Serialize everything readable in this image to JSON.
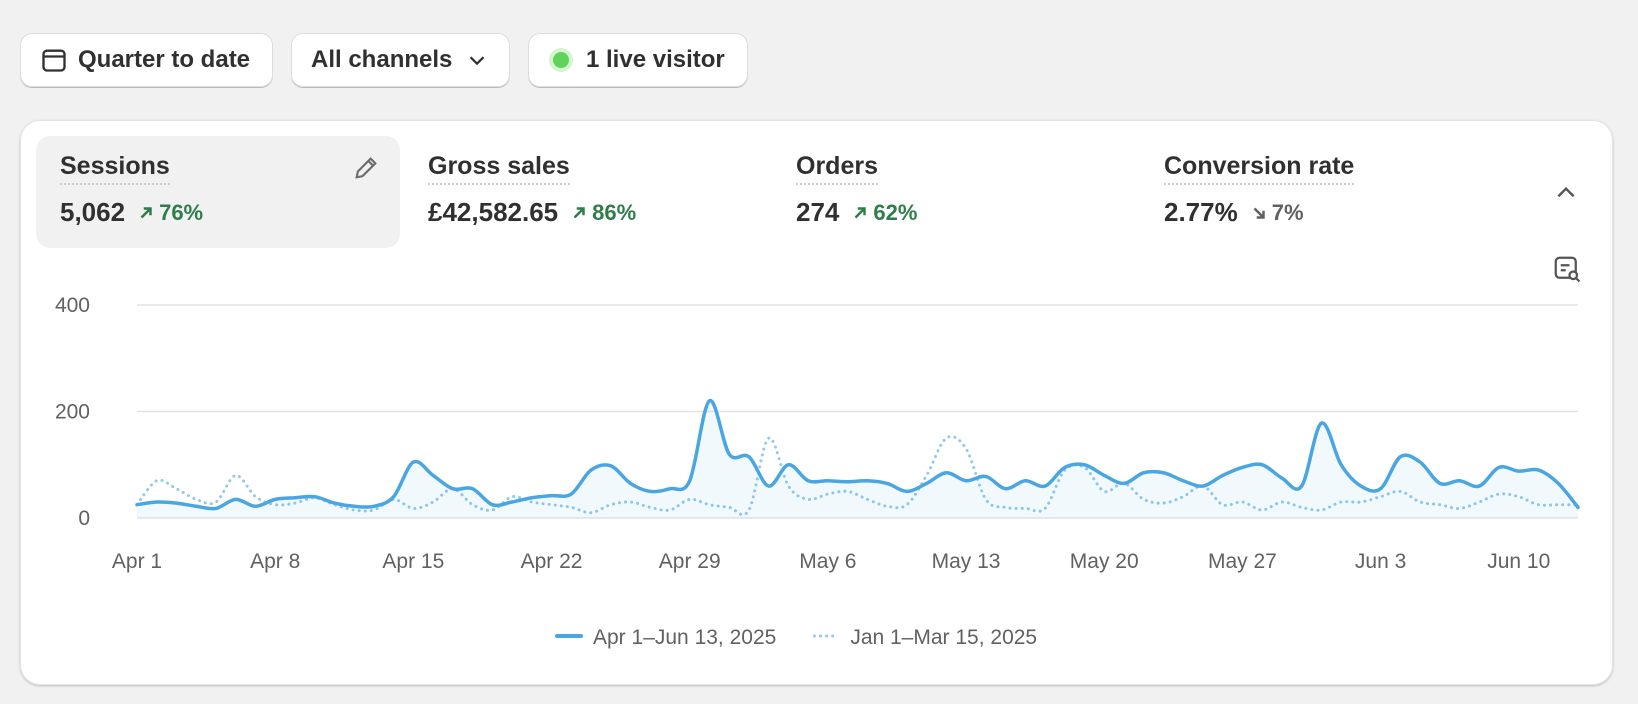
{
  "toolbar": {
    "date_button": "Quarter to date",
    "channel_button": "All channels",
    "live_button": "1 live visitor"
  },
  "metrics": [
    {
      "label": "Sessions",
      "value": "5,062",
      "change": "76%"
    },
    {
      "label": "Gross sales",
      "value": "£42,582.65",
      "change": "86%"
    },
    {
      "label": "Orders",
      "value": "274",
      "change": "62%"
    },
    {
      "label": "Conversion rate",
      "value": "2.77%",
      "change": "7%"
    }
  ],
  "chart_data": {
    "type": "line",
    "categories": [
      "Apr 1",
      null,
      null,
      null,
      null,
      null,
      null,
      "Apr 8",
      null,
      null,
      null,
      null,
      null,
      null,
      "Apr 15",
      null,
      null,
      null,
      null,
      null,
      null,
      "Apr 22",
      null,
      null,
      null,
      null,
      null,
      null,
      "Apr 29",
      null,
      null,
      null,
      null,
      null,
      null,
      "May 6",
      null,
      null,
      null,
      null,
      null,
      null,
      "May 13",
      null,
      null,
      null,
      null,
      null,
      null,
      "May 20",
      null,
      null,
      null,
      null,
      null,
      null,
      "May 27",
      null,
      null,
      null,
      null,
      null,
      null,
      "Jun 3",
      null,
      null,
      null,
      null,
      null,
      null,
      "Jun 10",
      null,
      null,
      null
    ],
    "series": [
      {
        "name": "Apr 1–Jun 13, 2025",
        "color": "#4aa6e0",
        "values": [
          25,
          30,
          28,
          22,
          18,
          35,
          22,
          35,
          38,
          40,
          28,
          22,
          22,
          40,
          105,
          80,
          55,
          55,
          25,
          30,
          38,
          42,
          45,
          90,
          98,
          65,
          50,
          55,
          70,
          220,
          120,
          115,
          60,
          100,
          70,
          70,
          68,
          70,
          65,
          50,
          65,
          85,
          70,
          78,
          55,
          70,
          60,
          95,
          100,
          80,
          65,
          85,
          85,
          70,
          60,
          80,
          95,
          100,
          75,
          60,
          178,
          100,
          60,
          55,
          115,
          105,
          65,
          70,
          60,
          95,
          88,
          90,
          65,
          20
        ]
      },
      {
        "name": "Jan 1–Mar 15, 2025",
        "color": "#92c9ec",
        "values": [
          25,
          70,
          55,
          35,
          30,
          80,
          40,
          25,
          28,
          38,
          25,
          15,
          15,
          35,
          18,
          30,
          55,
          25,
          15,
          40,
          30,
          25,
          20,
          10,
          25,
          30,
          20,
          15,
          35,
          25,
          20,
          15,
          150,
          60,
          35,
          45,
          50,
          35,
          22,
          25,
          80,
          150,
          130,
          35,
          20,
          18,
          18,
          90,
          95,
          50,
          65,
          35,
          28,
          40,
          60,
          25,
          30,
          15,
          30,
          20,
          15,
          30,
          30,
          40,
          50,
          30,
          25,
          18,
          30,
          45,
          40,
          25,
          25,
          25
        ]
      }
    ],
    "ylim": [
      0,
      400
    ],
    "yticks": [
      0,
      200,
      400
    ],
    "grid": true
  }
}
